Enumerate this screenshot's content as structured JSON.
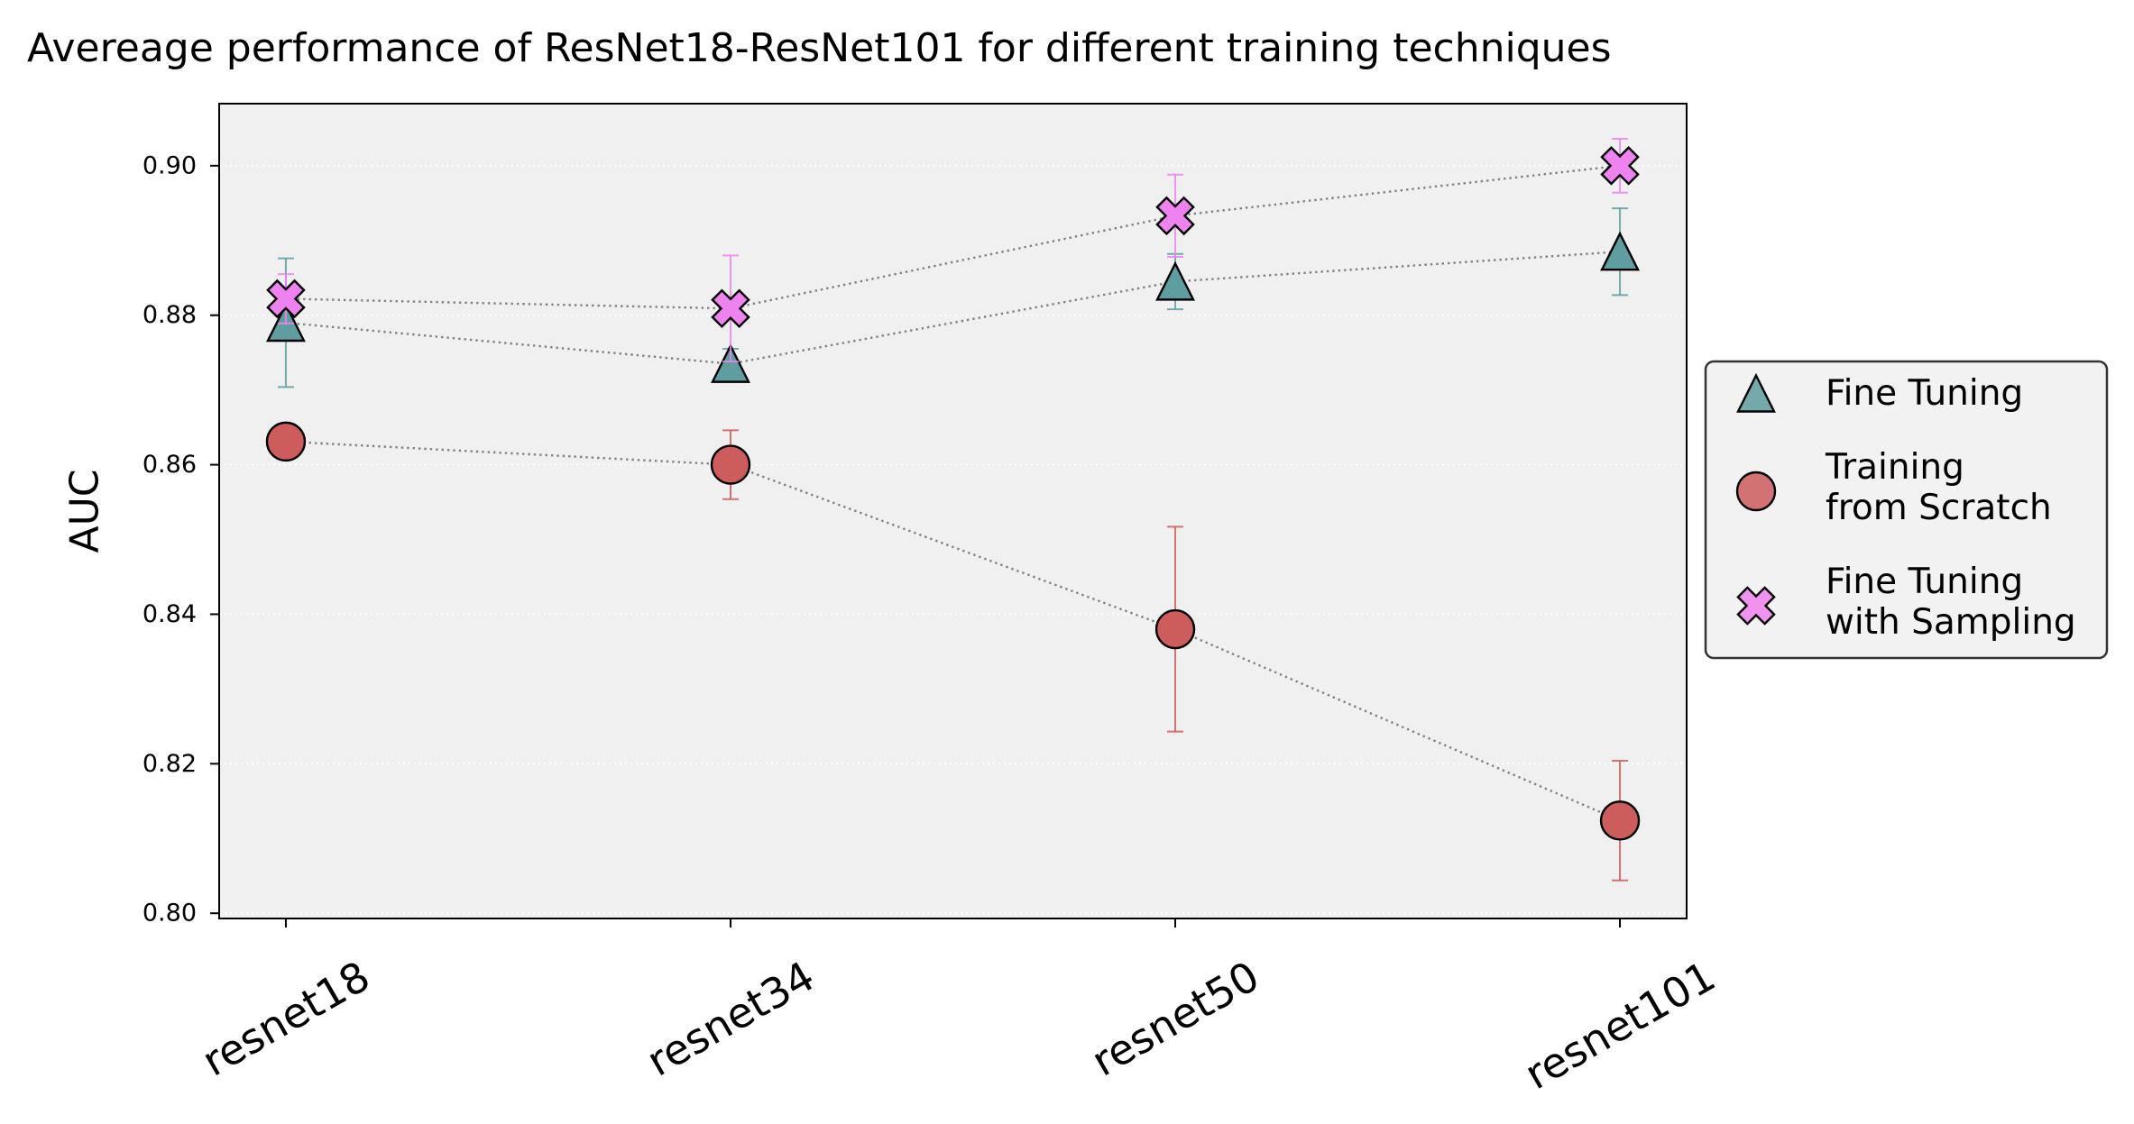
{
  "chart_data": {
    "type": "scatter",
    "title": "Avereage performance of ResNet18-ResNet101 for different training techniques",
    "ylabel": "AUC",
    "categories": [
      "resnet18",
      "resnet34",
      "resnet50",
      "resnet101"
    ],
    "ylim": [
      0.7993,
      0.9083
    ],
    "yticks": [
      0.8,
      0.82,
      0.84,
      0.86,
      0.88,
      0.9
    ],
    "ytick_labels": [
      "0.80",
      "0.82",
      "0.84",
      "0.86",
      "0.88",
      "0.90"
    ],
    "grid": {
      "y": true,
      "x": false,
      "style": "dotted",
      "color": "#ffffff"
    },
    "background": "#f0f0f0",
    "edgecolor": "#000000",
    "connector_line": {
      "style": "dotted",
      "color": "#808080"
    },
    "legend": {
      "placement": "outside-right"
    },
    "series": [
      {
        "name": [
          "Fine Tuning"
        ],
        "marker": "triangle",
        "color": "#5f9ea0",
        "values": [
          0.879,
          0.8735,
          0.8845,
          0.8885
        ],
        "yerr": [
          0.0086,
          0.002,
          0.0037,
          0.0058
        ]
      },
      {
        "name": [
          "Training",
          "from Scratch"
        ],
        "marker": "circle",
        "color": "#cd5c5c",
        "values": [
          0.8631,
          0.86,
          0.838,
          0.8124
        ],
        "yerr": [
          0.0005,
          0.0046,
          0.0137,
          0.008
        ]
      },
      {
        "name": [
          "Fine Tuning",
          "with Sampling"
        ],
        "marker": "x",
        "color": "#ee82ee",
        "values": [
          0.8822,
          0.8809,
          0.8933,
          0.9
        ],
        "yerr": [
          0.0033,
          0.0071,
          0.0055,
          0.0036
        ]
      }
    ]
  }
}
